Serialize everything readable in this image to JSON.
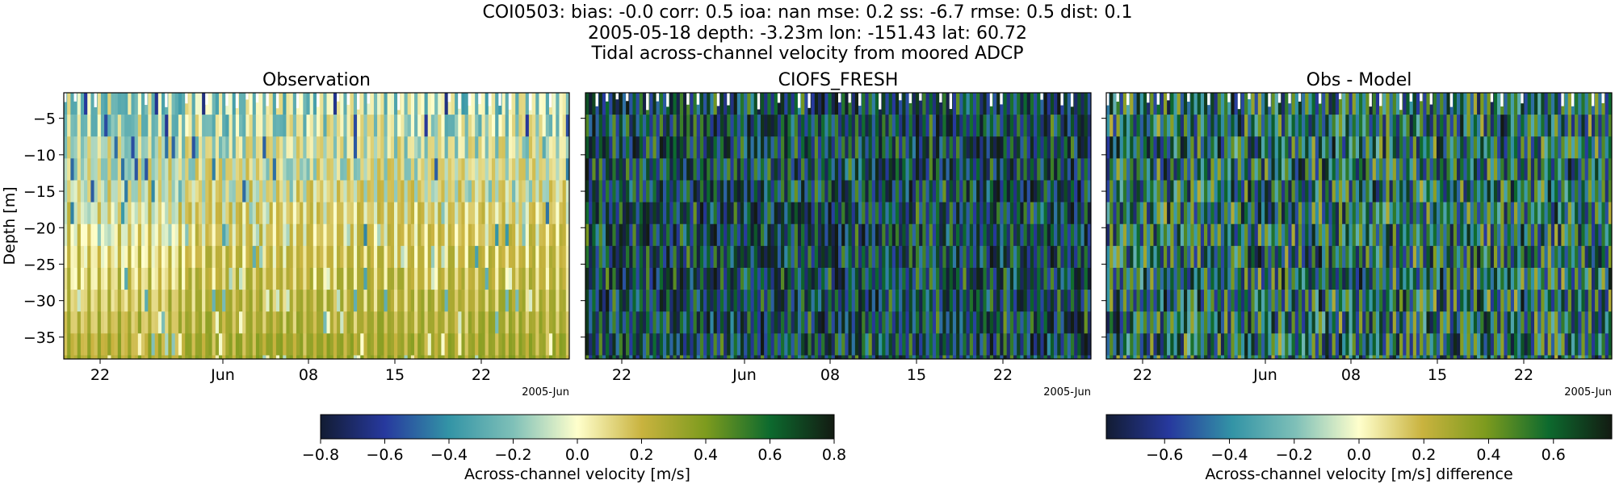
{
  "figure": {
    "title_lines": [
      "COI0503: bias: -0.0  corr: 0.5  ioa: nan  mse: 0.2  ss: -6.7  rmse: 0.5  dist: 0.1",
      "2005-05-18 depth: -3.23m lon: -151.43 lat: 60.72",
      "Tidal across-channel velocity from moored ADCP"
    ]
  },
  "chart_data": [
    {
      "type": "heatmap",
      "title": "Observation",
      "ylabel": "Depth [m]",
      "xlabel": "",
      "x_tick_labels": [
        "22",
        "Jun",
        "08",
        "15",
        "22"
      ],
      "x_offset_label": "2005-Jun",
      "y_ticks": [
        -5,
        -10,
        -15,
        -20,
        -25,
        -30,
        -35
      ],
      "y_tick_labels": [
        "−5",
        "−10",
        "−15",
        "−20",
        "−25",
        "−30",
        "−35"
      ],
      "ylim": [
        -38,
        -1.5
      ],
      "xlim": [
        "2005-05-18",
        "2005-06-27"
      ],
      "colormap": "delta",
      "colorbar": "left"
    },
    {
      "type": "heatmap",
      "title": "CIOFS_FRESH",
      "ylabel": "",
      "xlabel": "",
      "x_tick_labels": [
        "22",
        "Jun",
        "08",
        "15",
        "22"
      ],
      "x_offset_label": "2005-Jun",
      "ylim": [
        -38,
        -1.5
      ],
      "xlim": [
        "2005-05-18",
        "2005-06-27"
      ],
      "colormap": "delta",
      "colorbar": "left"
    },
    {
      "type": "heatmap",
      "title": "Obs - Model",
      "ylabel": "",
      "xlabel": "",
      "x_tick_labels": [
        "22",
        "Jun",
        "08",
        "15",
        "22"
      ],
      "x_offset_label": "2005-Jun",
      "ylim": [
        -38,
        -1.5
      ],
      "xlim": [
        "2005-05-18",
        "2005-06-27"
      ],
      "colormap": "delta",
      "colorbar": "right"
    }
  ],
  "colorbars": [
    {
      "label": "Across-channel velocity [m/s]",
      "range": [
        -0.8,
        0.8
      ],
      "ticks": [
        -0.8,
        -0.6,
        -0.4,
        -0.2,
        0.0,
        0.2,
        0.4,
        0.6,
        0.8
      ],
      "tick_labels": [
        "−0.8",
        "−0.6",
        "−0.4",
        "−0.2",
        "0.0",
        "0.2",
        "0.4",
        "0.6",
        "0.8"
      ]
    },
    {
      "label": "Across-channel velocity [m/s] difference",
      "range": [
        -0.78,
        0.78
      ],
      "ticks": [
        -0.6,
        -0.4,
        -0.2,
        0.0,
        0.2,
        0.4,
        0.6
      ],
      "tick_labels": [
        "−0.6",
        "−0.4",
        "−0.2",
        "0.0",
        "0.2",
        "0.4",
        "0.6"
      ]
    }
  ],
  "colors": {
    "colormap_stops": [
      "#121c33",
      "#27399e",
      "#3394a6",
      "#7fc0b8",
      "#ffffcc",
      "#c9b33f",
      "#7d9b1e",
      "#0d6a2e",
      "#131b12"
    ]
  }
}
